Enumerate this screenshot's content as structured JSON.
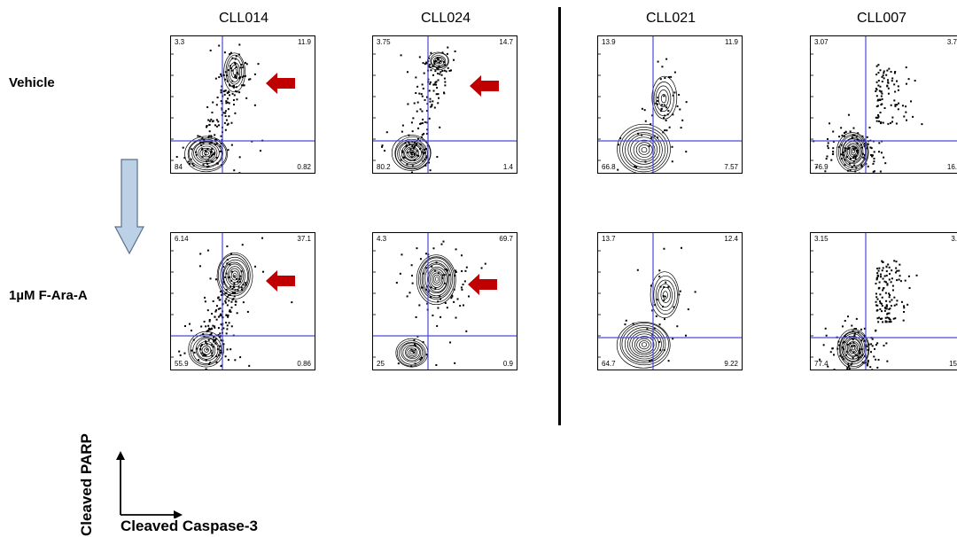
{
  "columns": [
    {
      "label": "CLL014"
    },
    {
      "label": "CLL024"
    },
    {
      "label": "CLL021"
    },
    {
      "label": "CLL007"
    }
  ],
  "rows": [
    {
      "label": "Vehicle"
    },
    {
      "label": "1µM F-Ara-A"
    }
  ],
  "panels": [
    [
      {
        "tl": "3.3",
        "tr": "11.9",
        "bl": "84",
        "br": "0.82",
        "highlight": true
      },
      {
        "tl": "3.75",
        "tr": "14.7",
        "bl": "80.2",
        "br": "1.4",
        "highlight": true
      },
      {
        "tl": "13.9",
        "tr": "11.9",
        "bl": "66.8",
        "br": "7.57",
        "highlight": false
      },
      {
        "tl": "3.07",
        "tr": "3.7",
        "bl": "76.9",
        "br": "16.",
        "highlight": false
      }
    ],
    [
      {
        "tl": "6.14",
        "tr": "37.1",
        "bl": "55.9",
        "br": "0.86",
        "highlight": true
      },
      {
        "tl": "4.3",
        "tr": "69.7",
        "bl": "25",
        "br": "0.9",
        "highlight": true
      },
      {
        "tl": "13.7",
        "tr": "12.4",
        "bl": "64.7",
        "br": "9.22",
        "highlight": false
      },
      {
        "tl": "3.15",
        "tr": "3.",
        "bl": "77.4",
        "br": "15",
        "highlight": false
      }
    ]
  ],
  "axes": {
    "y_label": "Cleaved PARP",
    "x_label": "Cleaved Caspase-3"
  },
  "colors": {
    "gate_lines": "#4a4ad8",
    "highlight_arrow": "#c00000",
    "treatment_arrow_fill": "#bcd0e6",
    "treatment_arrow_stroke": "#5a6f8a"
  }
}
